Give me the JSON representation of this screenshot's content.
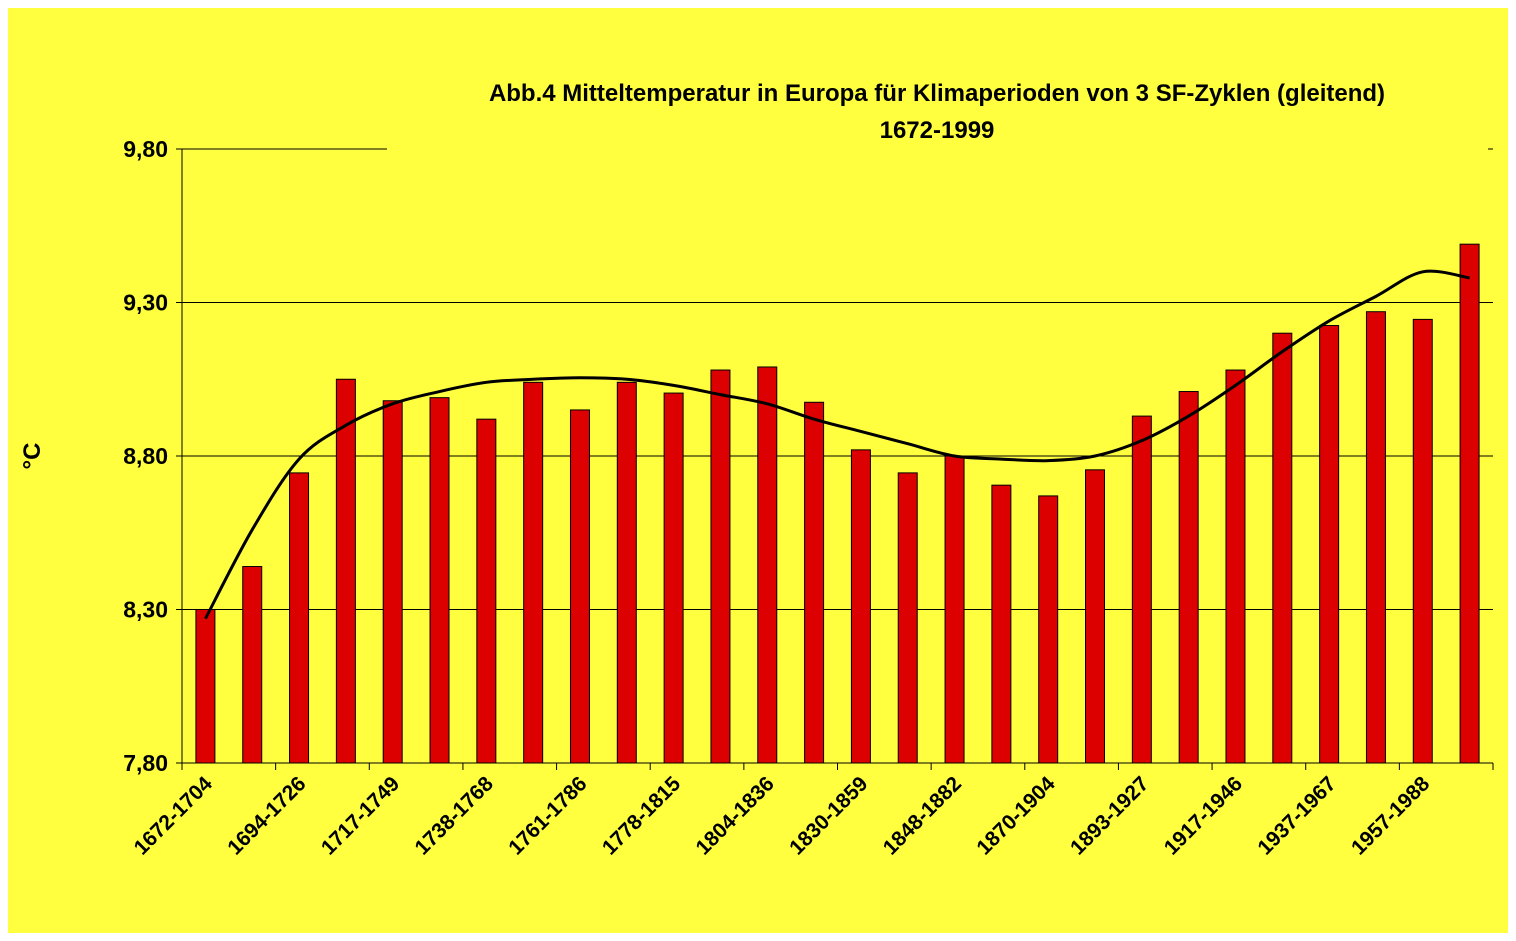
{
  "chart_data": {
    "type": "bar",
    "title": "Abb.4 Mitteltemperatur in Europa für Klimaperioden von 3 SF-Zyklen (gleitend)",
    "subtitle": "1672-1999",
    "xlabel": "",
    "ylabel": "°C",
    "ylim": [
      7.8,
      9.8
    ],
    "yticks": [
      "9,80",
      "9,30",
      "8,80",
      "8,30",
      "7,80"
    ],
    "ytick_values": [
      9.8,
      9.3,
      8.8,
      8.3,
      7.8
    ],
    "grid": true,
    "x_tick_labels": [
      "1672-1704",
      "1694-1726",
      "1717-1749",
      "1738-1768",
      "1761-1786",
      "1778-1815",
      "1804-1836",
      "1830-1859",
      "1848-1882",
      "1870-1904",
      "1893-1927",
      "1917-1946",
      "1937-1967",
      "1957-1988"
    ],
    "label_every": 2,
    "values": [
      8.3,
      8.44,
      8.745,
      9.05,
      8.98,
      8.99,
      8.92,
      9.04,
      8.95,
      9.04,
      9.005,
      9.08,
      9.09,
      8.975,
      8.82,
      8.745,
      8.8,
      8.705,
      8.67,
      8.755,
      8.93,
      9.01,
      9.08,
      9.2,
      9.225,
      9.27,
      9.245,
      9.49
    ],
    "trendline": {
      "type": "polynomial",
      "values": [
        8.27,
        8.56,
        8.79,
        8.9,
        8.97,
        9.01,
        9.04,
        9.05,
        9.055,
        9.05,
        9.03,
        9.0,
        8.97,
        8.92,
        8.88,
        8.84,
        8.8,
        8.79,
        8.785,
        8.8,
        8.85,
        8.93,
        9.03,
        9.14,
        9.24,
        9.32,
        9.4,
        9.38
      ]
    },
    "colors": {
      "bar": "#DD0000",
      "background": "#FFFF40",
      "trend": "#000000"
    }
  }
}
